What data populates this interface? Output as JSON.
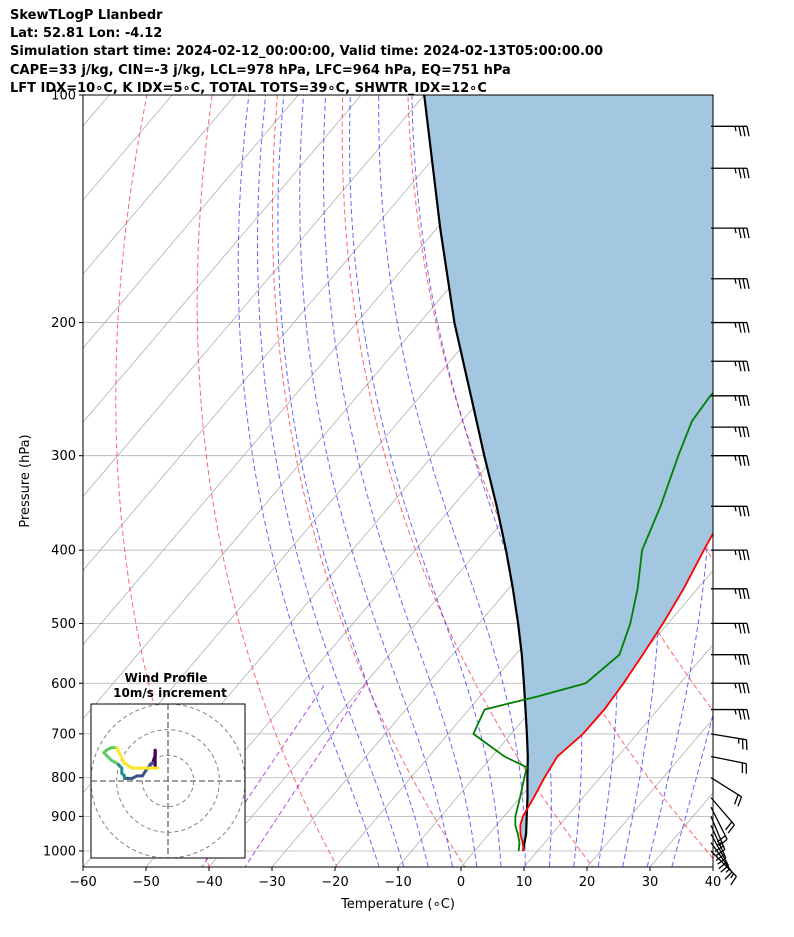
{
  "header": {
    "title": "SkewTLogP Llanbedr",
    "location": "Lat: 52.81   Lon: -4.12",
    "times": "Simulation start time: 2024-02-12_00:00:00, Valid time: 2024-02-13T05:00:00.00",
    "indices1": "CAPE=33 j/kg, CIN=-3 j/kg, LCL=978 hPa, LFC=964 hPa, EQ=751 hPa",
    "indices2": "LFT IDX=10∘C, K IDX=5∘C, TOTAL TOTS=39∘C, SHWTR_IDX=12∘C"
  },
  "chart_data": {
    "type": "line",
    "xlabel": "Temperature (∘C)",
    "ylabel": "Pressure (hPa)",
    "xlim": [
      -60,
      40
    ],
    "ylim": [
      1050,
      100
    ],
    "y_scale": "log",
    "x_ticks": [
      "−60",
      "−50",
      "−40",
      "−30",
      "−20",
      "−10",
      "0",
      "10",
      "20",
      "30",
      "40"
    ],
    "y_ticks": [
      "1000",
      "900",
      "800",
      "700",
      "600",
      "500",
      "400",
      "300",
      "200",
      "100"
    ],
    "y_tick_values": [
      1000,
      900,
      800,
      700,
      600,
      500,
      400,
      300,
      200,
      100
    ],
    "grid": true,
    "colors": {
      "temperature": "#ff0000",
      "dewpoint": "#008000",
      "parcel": "#000000",
      "shade": "#a3c6e1",
      "dry_adiabat": "#ff0000",
      "moist_adiabat": "#0000ff",
      "mixing_ratio": "#9400d3"
    },
    "series": [
      {
        "key": "temperature",
        "values": [
          [
            1000,
            7.8
          ],
          [
            975,
            6.5
          ],
          [
            950,
            5.0
          ],
          [
            925,
            3.8
          ],
          [
            900,
            3.0
          ],
          [
            850,
            2.2
          ],
          [
            800,
            1.2
          ],
          [
            750,
            0.4
          ],
          [
            700,
            1.4
          ],
          [
            650,
            1.5
          ],
          [
            600,
            1.0
          ],
          [
            550,
            0.2
          ],
          [
            500,
            -0.8
          ],
          [
            450,
            -2.2
          ],
          [
            400,
            -4.2
          ],
          [
            350,
            -6.3
          ],
          [
            300,
            -8.3
          ],
          [
            275,
            -9.0
          ],
          [
            260,
            -8.8
          ],
          [
            250,
            -7.2
          ],
          [
            235,
            -1.8
          ],
          [
            220,
            -0.6
          ],
          [
            200,
            1.9
          ],
          [
            180,
            3.4
          ],
          [
            160,
            5.5
          ],
          [
            140,
            9.0
          ],
          [
            120,
            12.0
          ],
          [
            100,
            14.5
          ]
        ]
      },
      {
        "key": "dewpoint",
        "values": [
          [
            1000,
            7.0
          ],
          [
            975,
            6.0
          ],
          [
            950,
            4.6
          ],
          [
            925,
            3.0
          ],
          [
            900,
            1.8
          ],
          [
            850,
            0.0
          ],
          [
            800,
            -2.0
          ],
          [
            775,
            -3.0
          ],
          [
            750,
            -8.0
          ],
          [
            700,
            -16.0
          ],
          [
            650,
            -17.5
          ],
          [
            625,
            -11.0
          ],
          [
            600,
            -5.0
          ],
          [
            550,
            -3.5
          ],
          [
            500,
            -6.0
          ],
          [
            450,
            -9.5
          ],
          [
            400,
            -14.0
          ],
          [
            350,
            -17.0
          ],
          [
            300,
            -21.0
          ],
          [
            270,
            -23.5
          ],
          [
            250,
            -24.0
          ],
          [
            225,
            -23.5
          ],
          [
            210,
            -19.5
          ],
          [
            200,
            -18.5
          ],
          [
            185,
            -22.0
          ],
          [
            175,
            -19.0
          ],
          [
            150,
            -13.0
          ],
          [
            125,
            -7.5
          ],
          [
            100,
            -3.0
          ]
        ]
      },
      {
        "key": "parcel",
        "values": [
          [
            1000,
            7.7
          ],
          [
            978,
            6.9
          ],
          [
            950,
            5.9
          ],
          [
            900,
            3.6
          ],
          [
            850,
            1.2
          ],
          [
            800,
            -1.5
          ],
          [
            750,
            -4.3
          ],
          [
            700,
            -7.5
          ],
          [
            650,
            -11.0
          ],
          [
            600,
            -14.8
          ],
          [
            550,
            -19.0
          ],
          [
            500,
            -23.8
          ],
          [
            450,
            -29.3
          ],
          [
            400,
            -35.6
          ],
          [
            350,
            -43.0
          ],
          [
            300,
            -51.8
          ],
          [
            250,
            -62.0
          ],
          [
            200,
            -74.5
          ],
          [
            150,
            -89.5
          ],
          [
            100,
            -110.0
          ]
        ]
      }
    ],
    "dry_adiabats_theta_K": [
      230,
      250,
      270,
      290,
      310,
      330,
      350,
      370,
      390,
      410,
      430,
      450,
      470,
      490
    ],
    "moist_adiabats_theta_w_C": [
      -16,
      -12,
      -8,
      -4,
      0,
      4,
      8,
      12,
      16,
      20,
      24,
      28,
      32
    ],
    "mixing_ratios_g_per_kg": [
      0.1,
      0.2
    ],
    "wind_barbs": [
      {
        "p": 1000,
        "u": -5,
        "v": 5
      },
      {
        "p": 975,
        "u": -5,
        "v": 7
      },
      {
        "p": 950,
        "u": -5,
        "v": 9
      },
      {
        "p": 925,
        "u": -5,
        "v": 11
      },
      {
        "p": 900,
        "u": -5,
        "v": 12
      },
      {
        "p": 875,
        "u": -5,
        "v": 10
      },
      {
        "p": 850,
        "u": -6,
        "v": 7
      },
      {
        "p": 800,
        "u": -8,
        "v": 5
      },
      {
        "p": 750,
        "u": -10,
        "v": 2
      },
      {
        "p": 700,
        "u": -12,
        "v": 2
      },
      {
        "p": 650,
        "u": -17,
        "v": 0
      },
      {
        "p": 600,
        "u": -17,
        "v": 0
      },
      {
        "p": 550,
        "u": -17,
        "v": 0
      },
      {
        "p": 500,
        "u": -17,
        "v": 0
      },
      {
        "p": 450,
        "u": -17,
        "v": 0
      },
      {
        "p": 400,
        "u": -17,
        "v": 0
      },
      {
        "p": 350,
        "u": -17,
        "v": 0
      },
      {
        "p": 300,
        "u": -17,
        "v": 0
      },
      {
        "p": 275,
        "u": -17,
        "v": 0
      },
      {
        "p": 250,
        "u": -17,
        "v": 0
      },
      {
        "p": 225,
        "u": -17,
        "v": 0
      },
      {
        "p": 200,
        "u": -17,
        "v": 0
      },
      {
        "p": 175,
        "u": -17,
        "v": 0
      },
      {
        "p": 150,
        "u": -17,
        "v": 0
      },
      {
        "p": 125,
        "u": -17,
        "v": 0
      },
      {
        "p": 110,
        "u": -17,
        "v": 0
      }
    ],
    "wind_profile_inset": {
      "title": "Wind Profile",
      "subtitle": "10m/s increment",
      "ring_increments_ms": [
        10,
        20,
        30
      ],
      "lim_ms": 30,
      "colormap": [
        "#440154",
        "#3b528b",
        "#21908c",
        "#5ec962",
        "#fde725"
      ],
      "hodograph_uv": [
        [
          -5,
          5
        ],
        [
          -5,
          7
        ],
        [
          -5,
          9
        ],
        [
          -5,
          11
        ],
        [
          -5,
          12
        ],
        [
          -5,
          10
        ],
        [
          -6,
          7
        ],
        [
          -8,
          5
        ],
        [
          -10,
          2
        ],
        [
          -12,
          2
        ],
        [
          -14,
          1
        ],
        [
          -16,
          1
        ],
        [
          -17,
          1
        ],
        [
          -17,
          2
        ],
        [
          -18,
          3
        ],
        [
          -18,
          5
        ],
        [
          -19,
          6
        ],
        [
          -20,
          7
        ],
        [
          -22,
          8
        ],
        [
          -24,
          10
        ],
        [
          -25,
          11
        ],
        [
          -24,
          12
        ],
        [
          -22,
          13
        ],
        [
          -20,
          13
        ],
        [
          -19,
          11
        ],
        [
          -17,
          7
        ],
        [
          -14,
          5
        ],
        [
          -10,
          5
        ],
        [
          -7,
          5
        ],
        [
          -4,
          5
        ]
      ]
    }
  }
}
